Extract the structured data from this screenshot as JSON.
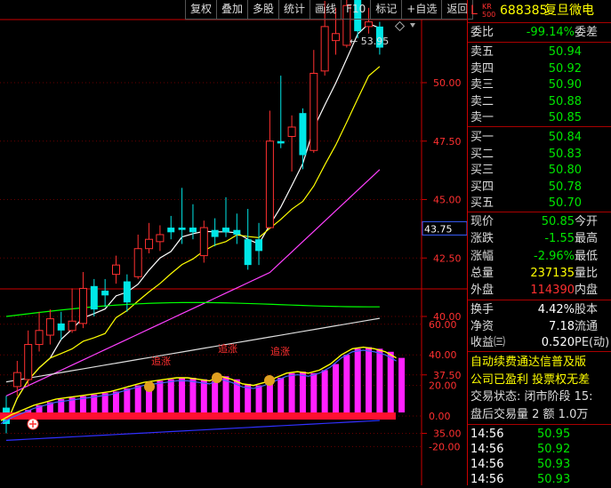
{
  "toolbar": {
    "buttons": [
      "复权",
      "叠加",
      "多股",
      "统计",
      "画线",
      "F10",
      "标记",
      "+自选",
      "返回"
    ]
  },
  "header": {
    "market_letter": "L",
    "badge_top": "KR",
    "badge_bottom": "500",
    "code": "688385",
    "name": "复旦微电"
  },
  "price_axis": {
    "ticks": [
      "50.00",
      "47.50",
      "45.00",
      "42.50",
      "40.00",
      "37.50",
      "35.00"
    ],
    "current_price_box": "43.75",
    "peak_label": "53.95"
  },
  "indicator_axis": {
    "ticks": [
      "60.00",
      "40.00",
      "20.00",
      "0.00",
      "-20.00"
    ],
    "labels": [
      "追涨",
      "追涨",
      "追涨"
    ]
  },
  "weibi": {
    "label": "委比",
    "value": "-99.14%",
    "label2": "委差"
  },
  "asks": [
    {
      "label": "卖五",
      "price": "50.94"
    },
    {
      "label": "卖四",
      "price": "50.92"
    },
    {
      "label": "卖三",
      "price": "50.90"
    },
    {
      "label": "卖二",
      "price": "50.88"
    },
    {
      "label": "卖一",
      "price": "50.85"
    }
  ],
  "bids": [
    {
      "label": "买一",
      "price": "50.84"
    },
    {
      "label": "买二",
      "price": "50.83"
    },
    {
      "label": "买三",
      "price": "50.80"
    },
    {
      "label": "买四",
      "price": "50.78"
    },
    {
      "label": "买五",
      "price": "50.70"
    }
  ],
  "stats": [
    {
      "label": "现价",
      "value": "50.85",
      "label2": "今开"
    },
    {
      "label": "涨跌",
      "value": "-1.55",
      "label2": "最高"
    },
    {
      "label": "涨幅",
      "value": "-2.96%",
      "label2": "最低"
    },
    {
      "label": "总量",
      "value": "237135",
      "label2": "量比"
    },
    {
      "label": "外盘",
      "value": "114390",
      "label2": "内盘"
    }
  ],
  "fundamentals": [
    {
      "label": "换手",
      "value": "4.42%",
      "label2": "股本"
    },
    {
      "label": "净资",
      "value": "7.18",
      "label2": "流通"
    },
    {
      "label": "收益㈢",
      "value": "0.520",
      "label2": "PE(动)"
    }
  ],
  "tickers": [
    "自动续费通达信普及版",
    "公司已盈利 投票权无差",
    "交易状态: 闭市阶段 15:",
    "盘后交易量 2 额 1.0万"
  ],
  "trades": [
    {
      "time": "14:56",
      "price": "50.95"
    },
    {
      "time": "14:56",
      "price": "50.92"
    },
    {
      "time": "14:56",
      "price": "50.93"
    },
    {
      "time": "14:56",
      "price": "50.93"
    }
  ],
  "colors": {
    "up": "#ff3030",
    "down": "#00e6e6",
    "ma5": "#ffffff",
    "ma10": "#ffff00",
    "ma20": "#ff40ff",
    "ma60": "#00ff00",
    "ma120": "#dddddd",
    "ma250": "#3030ff"
  }
}
